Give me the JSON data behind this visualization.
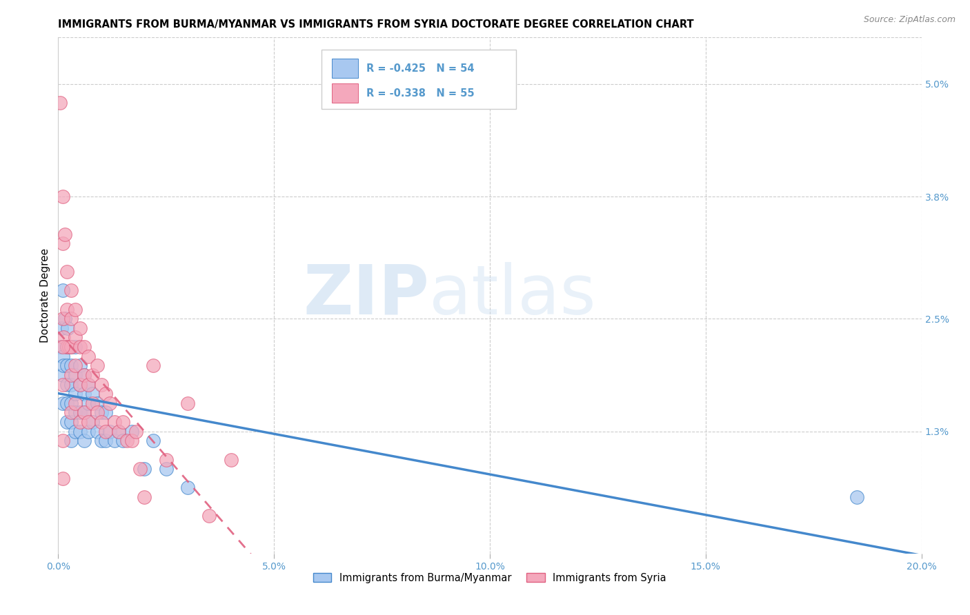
{
  "title": "IMMIGRANTS FROM BURMA/MYANMAR VS IMMIGRANTS FROM SYRIA DOCTORATE DEGREE CORRELATION CHART",
  "source": "Source: ZipAtlas.com",
  "ylabel": "Doctorate Degree",
  "legend_label_blue": "Immigrants from Burma/Myanmar",
  "legend_label_pink": "Immigrants from Syria",
  "R_blue": -0.425,
  "N_blue": 54,
  "R_pink": -0.338,
  "N_pink": 55,
  "color_blue": "#A8C8F0",
  "color_pink": "#F4A8BC",
  "line_blue": "#4488CC",
  "line_pink": "#E06080",
  "xlim": [
    0.0,
    0.2
  ],
  "ylim": [
    0.0,
    0.055
  ],
  "xtick_vals": [
    0.0,
    0.05,
    0.1,
    0.15,
    0.2
  ],
  "xticklabels": [
    "0.0%",
    "5.0%",
    "10.0%",
    "15.0%",
    "20.0%"
  ],
  "right_yticks": [
    0.013,
    0.025,
    0.038,
    0.05
  ],
  "right_yticklabels": [
    "1.3%",
    "2.5%",
    "3.8%",
    "5.0%"
  ],
  "grid_color": "#CCCCCC",
  "background": "#FFFFFF",
  "tick_color": "#5599CC",
  "blue_x": [
    0.0005,
    0.0008,
    0.001,
    0.001,
    0.001,
    0.0012,
    0.0015,
    0.002,
    0.002,
    0.002,
    0.002,
    0.002,
    0.0022,
    0.003,
    0.003,
    0.003,
    0.003,
    0.003,
    0.003,
    0.004,
    0.004,
    0.004,
    0.004,
    0.004,
    0.005,
    0.005,
    0.005,
    0.005,
    0.006,
    0.006,
    0.006,
    0.006,
    0.007,
    0.007,
    0.007,
    0.008,
    0.008,
    0.009,
    0.009,
    0.01,
    0.01,
    0.011,
    0.011,
    0.012,
    0.013,
    0.014,
    0.015,
    0.017,
    0.02,
    0.022,
    0.025,
    0.03,
    0.185,
    0.001
  ],
  "blue_y": [
    0.022,
    0.024,
    0.021,
    0.019,
    0.016,
    0.02,
    0.025,
    0.022,
    0.02,
    0.018,
    0.016,
    0.014,
    0.024,
    0.022,
    0.02,
    0.018,
    0.016,
    0.014,
    0.012,
    0.022,
    0.019,
    0.017,
    0.015,
    0.013,
    0.02,
    0.018,
    0.015,
    0.013,
    0.019,
    0.017,
    0.015,
    0.012,
    0.018,
    0.016,
    0.013,
    0.017,
    0.014,
    0.016,
    0.013,
    0.015,
    0.012,
    0.015,
    0.012,
    0.013,
    0.012,
    0.013,
    0.012,
    0.013,
    0.009,
    0.012,
    0.009,
    0.007,
    0.006,
    0.028
  ],
  "pink_x": [
    0.0005,
    0.001,
    0.001,
    0.001,
    0.001,
    0.0012,
    0.0015,
    0.002,
    0.002,
    0.002,
    0.0025,
    0.003,
    0.003,
    0.003,
    0.003,
    0.003,
    0.004,
    0.004,
    0.004,
    0.004,
    0.005,
    0.005,
    0.005,
    0.005,
    0.006,
    0.006,
    0.006,
    0.007,
    0.007,
    0.007,
    0.008,
    0.008,
    0.009,
    0.009,
    0.01,
    0.01,
    0.011,
    0.011,
    0.012,
    0.013,
    0.014,
    0.015,
    0.016,
    0.017,
    0.018,
    0.019,
    0.02,
    0.022,
    0.025,
    0.03,
    0.035,
    0.04,
    0.001,
    0.001,
    0.001
  ],
  "pink_y": [
    0.048,
    0.038,
    0.033,
    0.025,
    0.018,
    0.023,
    0.034,
    0.03,
    0.026,
    0.022,
    0.022,
    0.028,
    0.025,
    0.022,
    0.019,
    0.015,
    0.026,
    0.023,
    0.02,
    0.016,
    0.024,
    0.022,
    0.018,
    0.014,
    0.022,
    0.019,
    0.015,
    0.021,
    0.018,
    0.014,
    0.019,
    0.016,
    0.02,
    0.015,
    0.018,
    0.014,
    0.017,
    0.013,
    0.016,
    0.014,
    0.013,
    0.014,
    0.012,
    0.012,
    0.013,
    0.009,
    0.006,
    0.02,
    0.01,
    0.016,
    0.004,
    0.01,
    0.022,
    0.012,
    0.008
  ]
}
